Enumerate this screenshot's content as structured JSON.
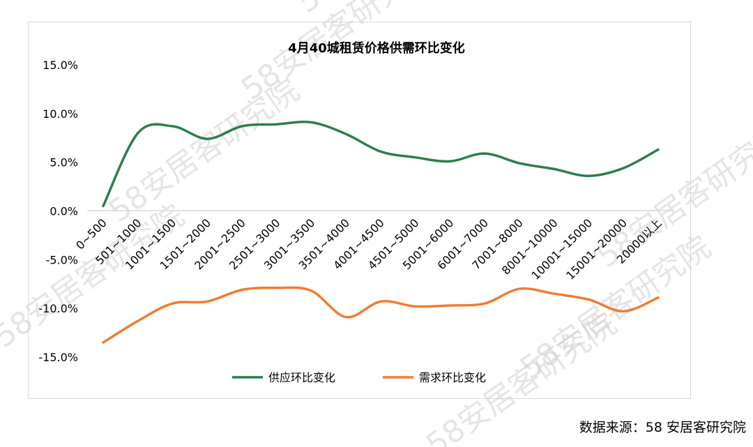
{
  "chart_data": {
    "type": "line",
    "title": "4月40城租赁价格供需环比变化",
    "categories": [
      "0~500",
      "501~1000",
      "1001~1500",
      "1501~2000",
      "2001~2500",
      "2501~3000",
      "3001~3500",
      "3501~4000",
      "4001~4500",
      "4501~5000",
      "5001~6000",
      "6001~7000",
      "7001~8000",
      "8001~10000",
      "10001~15000",
      "15001~20000",
      "20000以上"
    ],
    "series": [
      {
        "name": "供应环比变化",
        "color": "#2e7d4f",
        "values": [
          0.5,
          8.0,
          8.7,
          7.4,
          8.7,
          8.9,
          9.1,
          7.9,
          6.1,
          5.5,
          5.1,
          5.9,
          4.9,
          4.3,
          3.6,
          4.4,
          6.3
        ]
      },
      {
        "name": "需求环比变化",
        "color": "#ef7d32",
        "values": [
          -13.5,
          -11.3,
          -9.5,
          -9.3,
          -8.1,
          -7.9,
          -8.2,
          -10.9,
          -9.3,
          -9.8,
          -9.7,
          -9.5,
          -8.0,
          -8.5,
          -9.1,
          -10.3,
          -8.9
        ]
      }
    ],
    "yticks": [
      "15.0%",
      "10.0%",
      "5.0%",
      "0.0%",
      "-5.0%",
      "-10.0%",
      "-15.0%"
    ],
    "ylim": [
      -15,
      15
    ],
    "legend": "bottom"
  },
  "source": "数据来源：58 安居客研究院",
  "watermark": "58安居客研究院"
}
